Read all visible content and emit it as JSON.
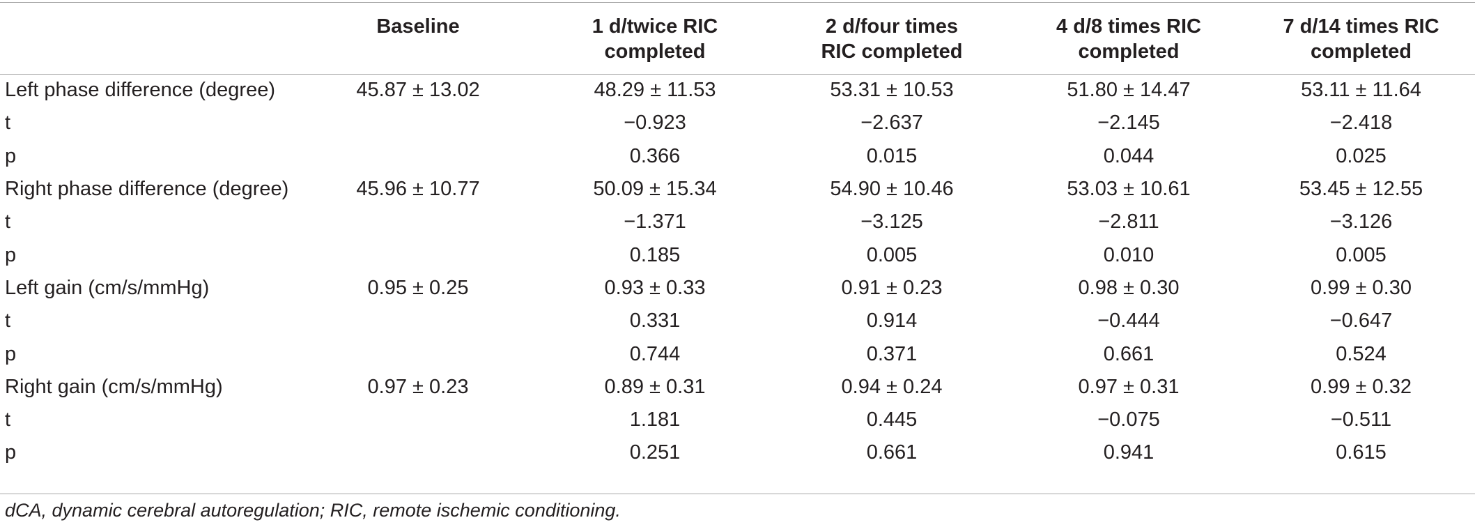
{
  "table": {
    "columns": [
      "",
      "Baseline",
      "1 d/twice RIC completed",
      "2 d/four times RIC completed",
      "4 d/8 times RIC completed",
      "7 d/14 times RIC completed"
    ],
    "column_lines": [
      [
        ""
      ],
      [
        "Baseline"
      ],
      [
        "1 d/twice RIC",
        "completed"
      ],
      [
        "2 d/four times",
        "RIC completed"
      ],
      [
        "4 d/8 times RIC",
        "completed"
      ],
      [
        "7 d/14 times RIC",
        "completed"
      ]
    ],
    "rows": [
      [
        "Left phase difference (degree)",
        "45.87 ± 13.02",
        "48.29 ± 11.53",
        "53.31 ± 10.53",
        "51.80 ± 14.47",
        "53.11 ± 11.64"
      ],
      [
        "t",
        "",
        "−0.923",
        "−2.637",
        "−2.145",
        "−2.418"
      ],
      [
        "p",
        "",
        "0.366",
        "0.015",
        "0.044",
        "0.025"
      ],
      [
        "Right phase difference (degree)",
        "45.96 ± 10.77",
        "50.09 ± 15.34",
        "54.90 ± 10.46",
        "53.03 ± 10.61",
        "53.45 ± 12.55"
      ],
      [
        "t",
        "",
        "−1.371",
        "−3.125",
        "−2.811",
        "−3.126"
      ],
      [
        "p",
        "",
        "0.185",
        "0.005",
        "0.010",
        "0.005"
      ],
      [
        "Left gain (cm/s/mmHg)",
        "0.95 ± 0.25",
        "0.93 ± 0.33",
        "0.91 ± 0.23",
        "0.98 ± 0.30",
        "0.99 ± 0.30"
      ],
      [
        "t",
        "",
        "0.331",
        "0.914",
        "−0.444",
        "−0.647"
      ],
      [
        "p",
        "",
        "0.744",
        "0.371",
        "0.661",
        "0.524"
      ],
      [
        "Right gain (cm/s/mmHg)",
        "0.97 ± 0.23",
        "0.89 ± 0.31",
        "0.94 ± 0.24",
        "0.97 ± 0.31",
        "0.99 ± 0.32"
      ],
      [
        "t",
        "",
        "1.181",
        "0.445",
        "−0.075",
        "−0.511"
      ],
      [
        "p",
        "",
        "0.251",
        "0.661",
        "0.941",
        "0.615"
      ]
    ]
  },
  "footnote": "dCA, dynamic cerebral autoregulation; RIC, remote ischemic conditioning."
}
